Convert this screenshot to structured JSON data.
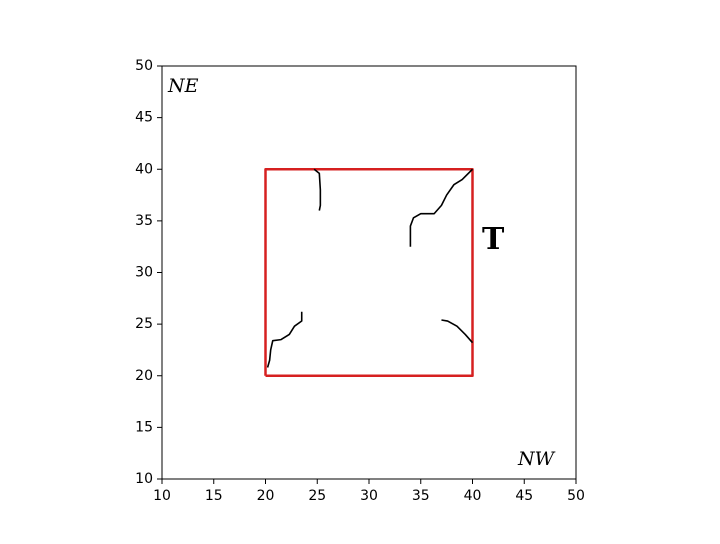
{
  "chart_data": {
    "type": "line",
    "xlim": [
      10,
      50
    ],
    "ylim": [
      10,
      50
    ],
    "xticks": [
      10,
      15,
      20,
      25,
      30,
      35,
      40,
      45,
      50
    ],
    "yticks": [
      10,
      15,
      20,
      25,
      30,
      35,
      40,
      45,
      50
    ],
    "grid": false,
    "annotations": [
      "NE",
      "NW",
      "T"
    ],
    "series": [
      {
        "color": "#d62020",
        "x": [
          20,
          40,
          40,
          20,
          20
        ],
        "values": [
          20,
          20,
          40,
          40,
          20
        ]
      },
      {
        "color": "#000000",
        "x": [
          24.7,
          25.2,
          25.3,
          25.3,
          25.2
        ],
        "values": [
          40,
          39.6,
          38,
          36.5,
          36
        ]
      },
      {
        "color": "#000000",
        "x": [
          40,
          39,
          38.2,
          37.5,
          37,
          36.3,
          35,
          34.3,
          34,
          34
        ],
        "values": [
          40,
          39,
          38.5,
          37.5,
          36.5,
          35.7,
          35.7,
          35.3,
          34.5,
          32.5
        ]
      },
      {
        "color": "#000000",
        "x": [
          23.5,
          23.5,
          22.8,
          22.3,
          21.5,
          20.7,
          20.5,
          20.4,
          20.2
        ],
        "values": [
          26.2,
          25.3,
          24.8,
          24,
          23.5,
          23.4,
          22.5,
          21.5,
          20.8
        ]
      },
      {
        "color": "#000000",
        "x": [
          37,
          37.6,
          38.5,
          39.3,
          40
        ],
        "values": [
          25.4,
          25.3,
          24.8,
          24,
          23.2
        ]
      }
    ]
  }
}
